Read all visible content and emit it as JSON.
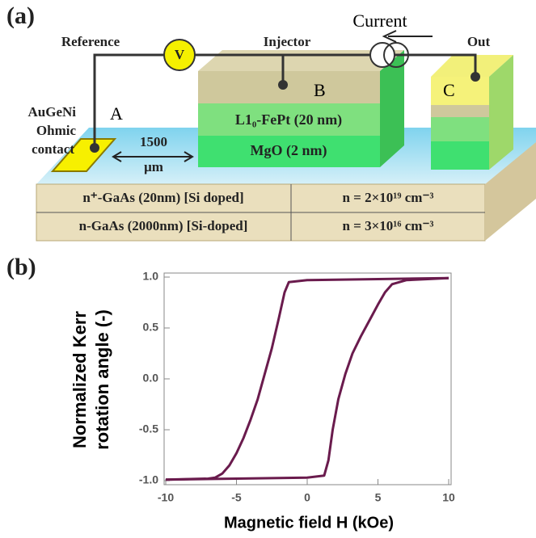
{
  "panel_a": {
    "label": "(a)",
    "reference": "Reference",
    "voltmeter": "V",
    "injector": "Injector",
    "current": "Current",
    "out": "Out",
    "point_a": "A",
    "point_b": "B",
    "point_c": "C",
    "contact": [
      "AuGeNi",
      "Ohmic",
      "contact"
    ],
    "distance": [
      "1500",
      "μm"
    ],
    "fept": "L1₀-FePt (20 nm)",
    "mgo": "MgO (2 nm)",
    "table": {
      "rows": [
        [
          "n⁺-GaAs (20nm) [Si doped]",
          "n = 2×10¹⁹  cm⁻³"
        ],
        [
          "n-GaAs (2000nm) [Si-doped]",
          "n = 3×10¹⁶  cm⁻³"
        ]
      ]
    }
  },
  "chart_data": {
    "type": "line",
    "panel_label": "(b)",
    "xlabel": "Magnetic field H (kOe)",
    "ylabel": [
      "Normalized Kerr",
      "rotation angle (-)"
    ],
    "series": [
      {
        "color": "#6a1b4d",
        "x": [
          10,
          5,
          0,
          -1.3,
          -1.6,
          -2,
          -2.5,
          -3,
          -3.5,
          -4,
          -4.5,
          -5,
          -5.5,
          -6,
          -6.5,
          -7,
          -10
        ],
        "values": [
          0.99,
          0.98,
          0.97,
          0.95,
          0.85,
          0.6,
          0.3,
          0.05,
          -0.2,
          -0.4,
          -0.58,
          -0.73,
          -0.85,
          -0.93,
          -0.97,
          -0.98,
          -0.99
        ]
      },
      {
        "color": "#6a1b4d",
        "x": [
          -10,
          -5,
          0,
          1.2,
          1.5,
          1.8,
          2.2,
          2.7,
          3.2,
          3.8,
          4.5,
          5,
          5.5,
          6,
          7,
          10
        ],
        "values": [
          -0.99,
          -0.98,
          -0.97,
          -0.95,
          -0.8,
          -0.5,
          -0.2,
          0.05,
          0.25,
          0.42,
          0.6,
          0.73,
          0.85,
          0.93,
          0.97,
          0.99
        ]
      }
    ],
    "xlim": [
      -10,
      10
    ],
    "ylim": [
      -1,
      1
    ],
    "xticks": [
      -10,
      -5,
      0,
      5,
      10
    ],
    "yticks": [
      {
        "value": -1,
        "label": "-1.0"
      },
      {
        "value": -0.5,
        "label": "-0.5"
      },
      {
        "value": 0,
        "label": "0.0"
      },
      {
        "value": 0.5,
        "label": "0.5"
      },
      {
        "value": 1,
        "label": "1.0"
      }
    ],
    "grid": false
  }
}
